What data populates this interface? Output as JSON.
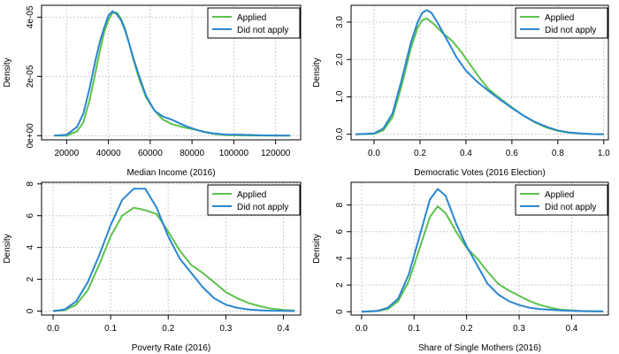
{
  "colors": {
    "applied": "#5cc24b",
    "did_not_apply": "#2a86d1",
    "grid": "#cccccc",
    "axis": "#000000"
  },
  "chart_data": [
    {
      "type": "line",
      "title": "",
      "xlabel": "Median Income (2016)",
      "ylabel": "Density",
      "xlim": [
        8000,
        132000
      ],
      "ylim": [
        -1.4e-06,
        4.4e-05
      ],
      "x_ticks": [
        20000,
        40000,
        60000,
        80000,
        100000,
        120000
      ],
      "x_tick_labels": [
        "20000",
        "40000",
        "60000",
        "80000",
        "100000",
        "120000"
      ],
      "y_ticks": [
        0,
        2e-05,
        4e-05
      ],
      "y_tick_labels": [
        "0e+00",
        "2e-05",
        "4e-05"
      ],
      "grid": true,
      "legend_position": "top-right",
      "series": [
        {
          "name": "Applied",
          "color": "#5cc24b",
          "x": [
            14000,
            20000,
            25000,
            28000,
            31000,
            34000,
            36000,
            38000,
            40000,
            42000,
            44000,
            46000,
            48000,
            50000,
            52000,
            55000,
            58000,
            62000,
            66000,
            70000,
            74000,
            78000,
            82000,
            86000,
            90000,
            96000,
            104000,
            115000,
            127000
          ],
          "y": [
            0,
            0,
            1.5e-06,
            4.5e-06,
            1.2e-05,
            2.2e-05,
            2.9e-05,
            3.5e-05,
            3.9e-05,
            4.15e-05,
            4.15e-05,
            3.95e-05,
            3.6e-05,
            3.1e-05,
            2.55e-05,
            1.85e-05,
            1.3e-05,
            8.5e-06,
            5.5e-06,
            4e-06,
            3.2e-06,
            2.5e-06,
            2e-06,
            1.2e-06,
            6e-07,
            2e-07,
            1e-07,
            0,
            0
          ]
        },
        {
          "name": "Did not apply",
          "color": "#2a86d1",
          "x": [
            14000,
            20000,
            25000,
            28000,
            31000,
            34000,
            36000,
            38000,
            40000,
            42000,
            44000,
            46000,
            48000,
            50000,
            52000,
            55000,
            58000,
            62000,
            66000,
            70000,
            74000,
            78000,
            82000,
            86000,
            90000,
            96000,
            104000,
            115000,
            127000
          ],
          "y": [
            0,
            3e-07,
            3e-06,
            7.5e-06,
            1.6e-05,
            2.6e-05,
            3.2e-05,
            3.65e-05,
            4.05e-05,
            4.2e-05,
            4.1e-05,
            3.9e-05,
            3.55e-05,
            3.1e-05,
            2.6e-05,
            1.95e-05,
            1.35e-05,
            8.5e-06,
            6.5e-06,
            5.5e-06,
            4.2e-06,
            3e-06,
            2e-06,
            1.3e-06,
            8e-07,
            4e-07,
            3e-07,
            1e-07,
            0
          ]
        }
      ]
    },
    {
      "type": "line",
      "title": "",
      "xlabel": "Democratic Votes (2016 Election)",
      "ylabel": "Density",
      "xlim": [
        -0.1,
        1.02
      ],
      "ylim": [
        -0.15,
        3.45
      ],
      "x_ticks": [
        0.0,
        0.2,
        0.4,
        0.6,
        0.8,
        1.0
      ],
      "x_tick_labels": [
        "0.0",
        "0.2",
        "0.4",
        "0.6",
        "0.8",
        "1.0"
      ],
      "y_ticks": [
        0,
        1,
        2,
        3
      ],
      "y_tick_labels": [
        "0.0",
        "1.0",
        "2.0",
        "3.0"
      ],
      "grid": true,
      "legend_position": "top-right",
      "series": [
        {
          "name": "Applied",
          "color": "#5cc24b",
          "x": [
            -0.08,
            0.0,
            0.04,
            0.08,
            0.12,
            0.16,
            0.19,
            0.21,
            0.23,
            0.26,
            0.3,
            0.34,
            0.38,
            0.42,
            0.46,
            0.5,
            0.55,
            0.6,
            0.65,
            0.7,
            0.75,
            0.8,
            0.85,
            0.9,
            0.95,
            1.0
          ],
          "y": [
            0,
            0.01,
            0.1,
            0.45,
            1.3,
            2.3,
            2.85,
            3.05,
            3.1,
            2.95,
            2.7,
            2.5,
            2.2,
            1.85,
            1.5,
            1.2,
            0.95,
            0.72,
            0.5,
            0.32,
            0.18,
            0.09,
            0.04,
            0.015,
            0.005,
            0
          ]
        },
        {
          "name": "Did not apply",
          "color": "#2a86d1",
          "x": [
            -0.08,
            0.0,
            0.04,
            0.08,
            0.12,
            0.16,
            0.19,
            0.21,
            0.23,
            0.25,
            0.28,
            0.32,
            0.36,
            0.4,
            0.45,
            0.5,
            0.55,
            0.6,
            0.65,
            0.7,
            0.75,
            0.8,
            0.85,
            0.9,
            0.95,
            1.0
          ],
          "y": [
            0,
            0.02,
            0.15,
            0.55,
            1.45,
            2.45,
            3.0,
            3.25,
            3.32,
            3.25,
            2.95,
            2.5,
            2.05,
            1.7,
            1.4,
            1.15,
            0.92,
            0.7,
            0.5,
            0.33,
            0.2,
            0.1,
            0.05,
            0.02,
            0.005,
            0
          ]
        }
      ]
    },
    {
      "type": "line",
      "title": "",
      "xlabel": "Poverty Rate (2016)",
      "ylabel": "Density",
      "xlim": [
        -0.02,
        0.43
      ],
      "ylim": [
        -0.25,
        8.1
      ],
      "x_ticks": [
        0.0,
        0.1,
        0.2,
        0.3,
        0.4
      ],
      "x_tick_labels": [
        "0.0",
        "0.1",
        "0.2",
        "0.3",
        "0.4"
      ],
      "y_ticks": [
        0,
        2,
        4,
        6,
        8
      ],
      "y_tick_labels": [
        "0",
        "2",
        "4",
        "6",
        "8"
      ],
      "grid": true,
      "legend_position": "top-right",
      "series": [
        {
          "name": "Applied",
          "color": "#5cc24b",
          "x": [
            0.0,
            0.02,
            0.04,
            0.06,
            0.08,
            0.1,
            0.12,
            0.14,
            0.16,
            0.18,
            0.2,
            0.22,
            0.24,
            0.26,
            0.28,
            0.3,
            0.32,
            0.34,
            0.36,
            0.38,
            0.4,
            0.42
          ],
          "y": [
            0,
            0.05,
            0.4,
            1.3,
            2.9,
            4.7,
            6.0,
            6.5,
            6.35,
            6.1,
            5.0,
            3.8,
            2.9,
            2.4,
            1.8,
            1.2,
            0.8,
            0.5,
            0.3,
            0.15,
            0.07,
            0.03
          ]
        },
        {
          "name": "Did not apply",
          "color": "#2a86d1",
          "x": [
            0.0,
            0.02,
            0.04,
            0.06,
            0.08,
            0.1,
            0.12,
            0.14,
            0.16,
            0.18,
            0.2,
            0.22,
            0.24,
            0.26,
            0.28,
            0.3,
            0.32,
            0.34,
            0.36,
            0.38,
            0.4,
            0.42
          ],
          "y": [
            0,
            0.1,
            0.6,
            1.8,
            3.5,
            5.4,
            7.0,
            7.7,
            7.7,
            6.5,
            4.7,
            3.3,
            2.4,
            1.5,
            0.8,
            0.4,
            0.2,
            0.1,
            0.05,
            0.02,
            0.01,
            0
          ]
        }
      ]
    },
    {
      "type": "line",
      "title": "",
      "xlabel": "Share of Single Mothers (2016)",
      "ylabel": "Density",
      "xlim": [
        -0.02,
        0.47
      ],
      "ylim": [
        -0.25,
        9.7
      ],
      "x_ticks": [
        0.0,
        0.1,
        0.2,
        0.3,
        0.4
      ],
      "x_tick_labels": [
        "0.0",
        "0.1",
        "0.2",
        "0.3",
        "0.4"
      ],
      "y_ticks": [
        0,
        2,
        4,
        6,
        8
      ],
      "y_tick_labels": [
        "0",
        "2",
        "4",
        "6",
        "8"
      ],
      "grid": true,
      "legend_position": "top-right",
      "series": [
        {
          "name": "Applied",
          "color": "#5cc24b",
          "x": [
            0.0,
            0.03,
            0.05,
            0.07,
            0.09,
            0.11,
            0.13,
            0.145,
            0.16,
            0.18,
            0.2,
            0.22,
            0.24,
            0.26,
            0.28,
            0.3,
            0.32,
            0.34,
            0.36,
            0.38,
            0.42,
            0.46
          ],
          "y": [
            0,
            0.05,
            0.2,
            0.8,
            2.3,
            4.7,
            7.1,
            7.9,
            7.4,
            6.0,
            4.8,
            4.0,
            3.0,
            2.1,
            1.6,
            1.2,
            0.8,
            0.5,
            0.3,
            0.15,
            0.05,
            0.02
          ]
        },
        {
          "name": "Did not apply",
          "color": "#2a86d1",
          "x": [
            0.0,
            0.03,
            0.05,
            0.07,
            0.09,
            0.11,
            0.13,
            0.145,
            0.16,
            0.18,
            0.2,
            0.22,
            0.24,
            0.26,
            0.28,
            0.3,
            0.32,
            0.34,
            0.36,
            0.38,
            0.42,
            0.46
          ],
          "y": [
            0,
            0.06,
            0.3,
            1.0,
            2.8,
            5.6,
            8.4,
            9.2,
            8.7,
            6.6,
            4.9,
            3.5,
            2.1,
            1.3,
            0.8,
            0.5,
            0.3,
            0.2,
            0.15,
            0.1,
            0.05,
            0.02
          ]
        }
      ]
    }
  ]
}
